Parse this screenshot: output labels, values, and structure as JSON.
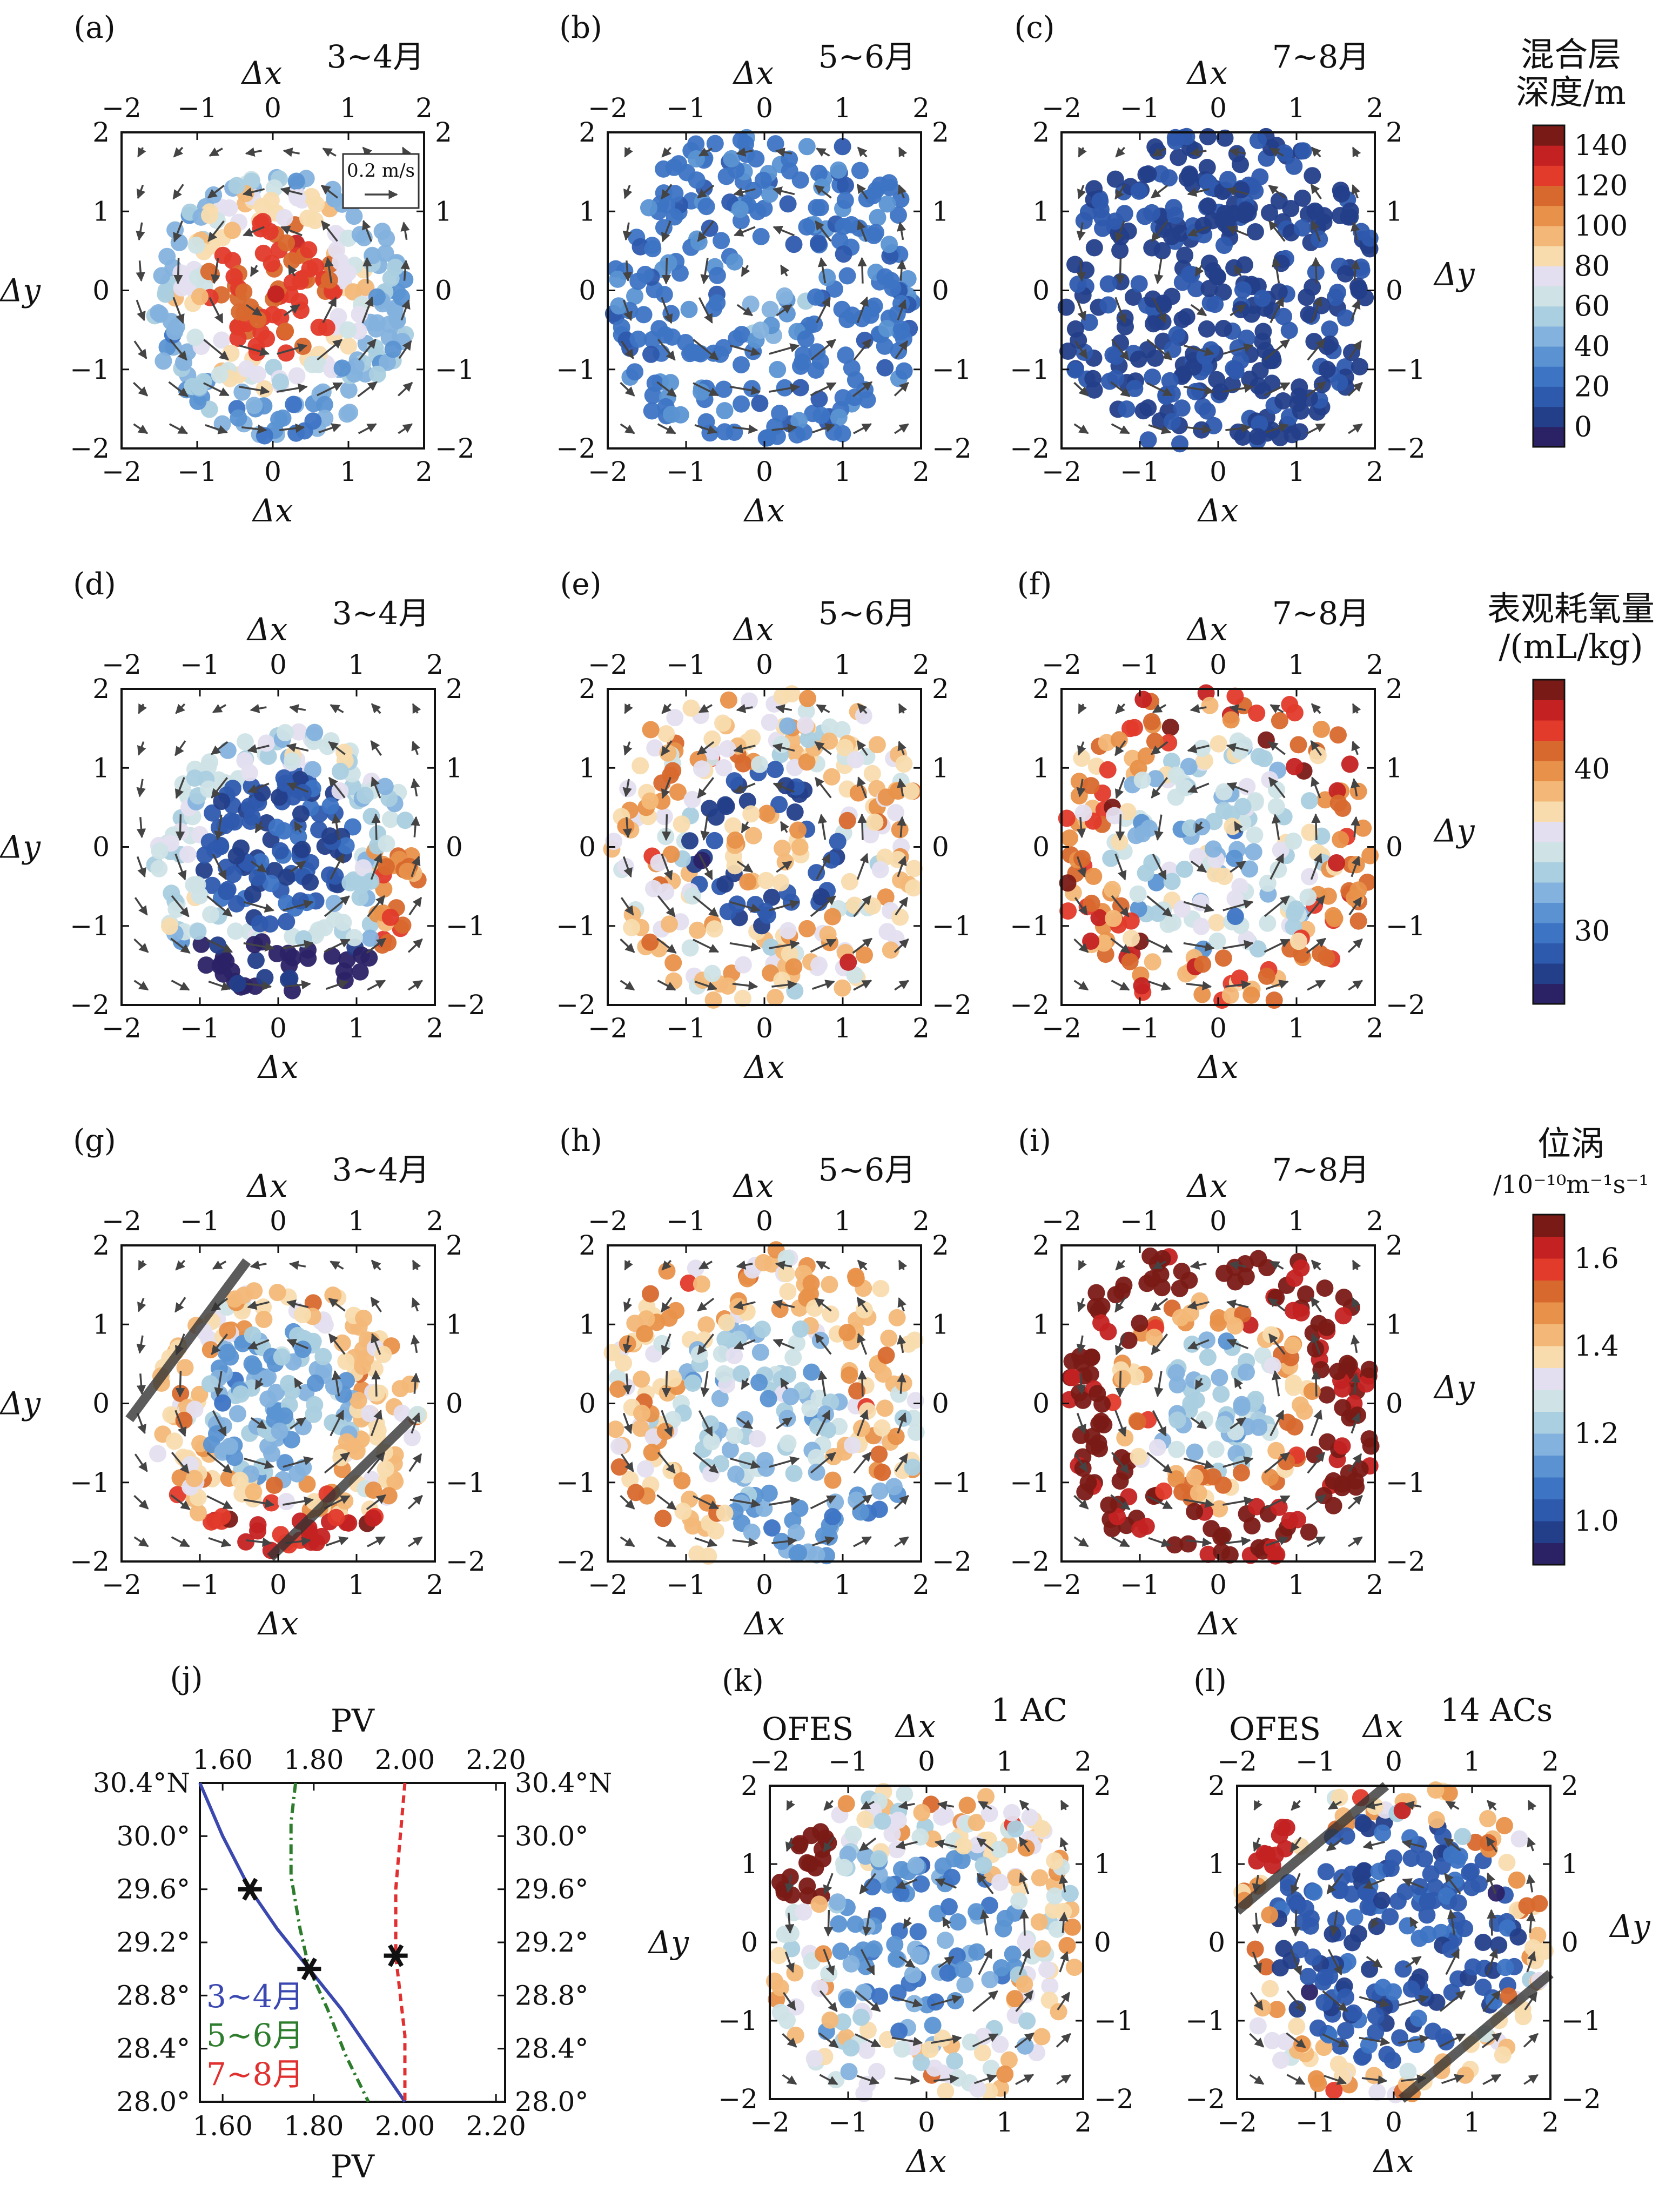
{
  "axis": {
    "x_label": "Δx",
    "y_label": "Δy",
    "range": [
      -2,
      2
    ],
    "ticks": [
      "−2",
      "−1",
      "0",
      "1",
      "2"
    ]
  },
  "vector_key": {
    "label": "0.2 m/s"
  },
  "months": {
    "mar_apr": "3~4月",
    "may_jun": "5~6月",
    "jul_aug": "7~8月"
  },
  "panels": [
    {
      "label": "(a)",
      "title": "3~4月",
      "variable": "mixed_layer",
      "pattern": "mld_spring",
      "has_vector_key": true
    },
    {
      "label": "(b)",
      "title": "5~6月",
      "variable": "mixed_layer",
      "pattern": "mld_shallow"
    },
    {
      "label": "(c)",
      "title": "7~8月",
      "variable": "mixed_layer",
      "pattern": "mld_shallow_dense"
    },
    {
      "label": "(d)",
      "title": "3~4月",
      "variable": "aou",
      "pattern": "aou_spring"
    },
    {
      "label": "(e)",
      "title": "5~6月",
      "variable": "aou",
      "pattern": "aou_ring"
    },
    {
      "label": "(f)",
      "title": "7~8月",
      "variable": "aou",
      "pattern": "aou_mixed"
    },
    {
      "label": "(g)",
      "title": "3~4月",
      "variable": "pv",
      "pattern": "pv_spring",
      "has_section_lines": true
    },
    {
      "label": "(h)",
      "title": "5~6月",
      "variable": "pv",
      "pattern": "pv_summer"
    },
    {
      "label": "(i)",
      "title": "7~8月",
      "variable": "pv",
      "pattern": "pv_ring"
    },
    {
      "label": "(k)",
      "title": "1 AC",
      "variable": "pv",
      "pattern": "ofes_single",
      "model_label": "OFES"
    },
    {
      "label": "(l)",
      "title": "14 ACs",
      "variable": "pv",
      "pattern": "ofes_composite",
      "model_label": "OFES",
      "has_section_lines": true
    }
  ],
  "colorbars": [
    {
      "title_lines": [
        "混合层",
        "深度/m"
      ],
      "tick_labels": [
        "140",
        "120",
        "100",
        "80",
        "60",
        "40",
        "20",
        "0"
      ],
      "range": [
        -10,
        150
      ],
      "tick_values": [
        140,
        120,
        100,
        80,
        60,
        40,
        20,
        0
      ]
    },
    {
      "title_lines": [
        "表观耗氧量",
        "/(mL/kg)"
      ],
      "tick_labels": [
        "40",
        "30"
      ],
      "range": [
        25.5,
        45.5
      ],
      "tick_values": [
        40,
        30
      ]
    },
    {
      "title_lines": [
        "位涡",
        "/10⁻¹⁰m⁻¹s⁻¹"
      ],
      "tick_labels": [
        "1.6",
        "1.4",
        "1.2",
        "1.0"
      ],
      "range": [
        0.9,
        1.7
      ],
      "tick_values": [
        1.6,
        1.4,
        1.2,
        1.0
      ]
    }
  ],
  "colormap": [
    "#2b2266",
    "#243f8a",
    "#2e5aae",
    "#3d74c4",
    "#5b93d2",
    "#84b2de",
    "#aacfe0",
    "#cfe3e6",
    "#e4dff0",
    "#f8dcae",
    "#f3b878",
    "#e8914a",
    "#d8692e",
    "#e23a2b",
    "#c42222",
    "#7a1a16"
  ],
  "chart_data": {
    "type": "line",
    "label": "(j)",
    "title": "",
    "xlabel": "PV",
    "ylabel": "",
    "xlim": [
      1.55,
      2.22
    ],
    "ylim": [
      28.0,
      30.4
    ],
    "x_ticks": [
      "1.60",
      "1.80",
      "2.00",
      "2.20"
    ],
    "y_ticks_left": [
      "30.4°N",
      "30.0°",
      "29.6°",
      "29.2°",
      "28.8°",
      "28.4°",
      "28.0°"
    ],
    "y_ticks_right": [
      "30.4°N",
      "30.0°",
      "29.6°",
      "29.2°",
      "28.8°",
      "28.4°",
      "28.0°"
    ],
    "series": [
      {
        "name": "3~4月",
        "color": "#3a48b0",
        "dash": "solid",
        "x": [
          1.55,
          1.6,
          1.66,
          1.72,
          1.79,
          1.86,
          1.93,
          2.0
        ],
        "y": [
          30.4,
          30.0,
          29.6,
          29.3,
          29.0,
          28.7,
          28.35,
          28.0
        ],
        "marker": {
          "x": 1.66,
          "y": 29.6
        }
      },
      {
        "name": "5~6月",
        "color": "#2e7d2e",
        "dash": "dashdot",
        "x": [
          1.76,
          1.75,
          1.75,
          1.77,
          1.79,
          1.83,
          1.87,
          1.92
        ],
        "y": [
          30.4,
          30.1,
          29.7,
          29.3,
          29.0,
          28.7,
          28.35,
          28.0
        ],
        "marker": {
          "x": 1.79,
          "y": 29.0
        }
      },
      {
        "name": "7~8月",
        "color": "#e03030",
        "dash": "dashed",
        "x": [
          2.0,
          1.99,
          1.98,
          1.98,
          1.99,
          2.0,
          2.0,
          2.0
        ],
        "y": [
          30.4,
          30.0,
          29.6,
          29.1,
          28.8,
          28.5,
          28.2,
          28.0
        ],
        "marker": {
          "x": 1.98,
          "y": 29.1
        }
      }
    ]
  }
}
